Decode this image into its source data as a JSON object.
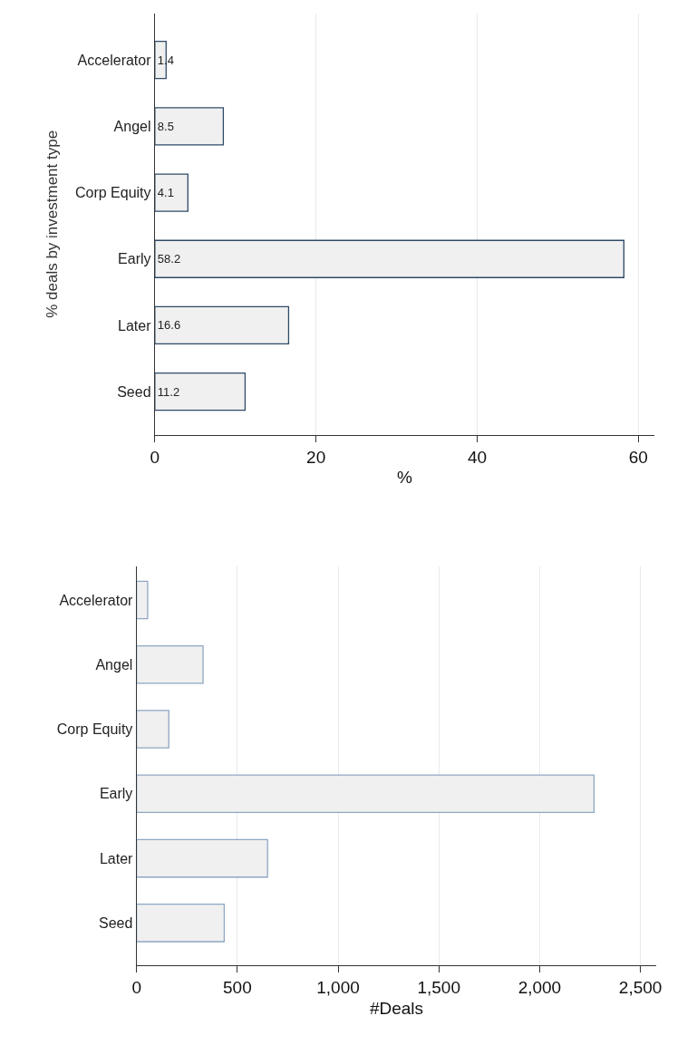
{
  "chart_data": [
    {
      "type": "bar",
      "orientation": "horizontal",
      "categories": [
        "Accelerator",
        "Angel",
        "Corp Equity",
        "Early",
        "Later",
        "Seed"
      ],
      "values": [
        1.4,
        8.5,
        4.1,
        58.2,
        16.6,
        11.2
      ],
      "color": "#f0f0f0",
      "data_labels": true,
      "xlim": [
        0,
        62
      ],
      "xticks": [
        0,
        20,
        40,
        60
      ],
      "xlabel": "%",
      "ylabel": "% deals by investment type",
      "grid": "x"
    },
    {
      "type": "bar",
      "orientation": "horizontal",
      "categories": [
        "Accelerator",
        "Angel",
        "Corp Equity",
        "Early",
        "Later",
        "Seed"
      ],
      "values": [
        55,
        330,
        160,
        2270,
        650,
        435
      ],
      "color": "#f0f0f0",
      "xlim": [
        0,
        2580
      ],
      "xticks": [
        0,
        500,
        {
          "value": 1000,
          "label": "1,000"
        },
        {
          "value": 1500,
          "label": "1,500"
        },
        {
          "value": 2000,
          "label": "2,000"
        },
        {
          "value": 2500,
          "label": "2,500"
        }
      ],
      "xlabel": "#Deals",
      "grid": "x"
    }
  ]
}
